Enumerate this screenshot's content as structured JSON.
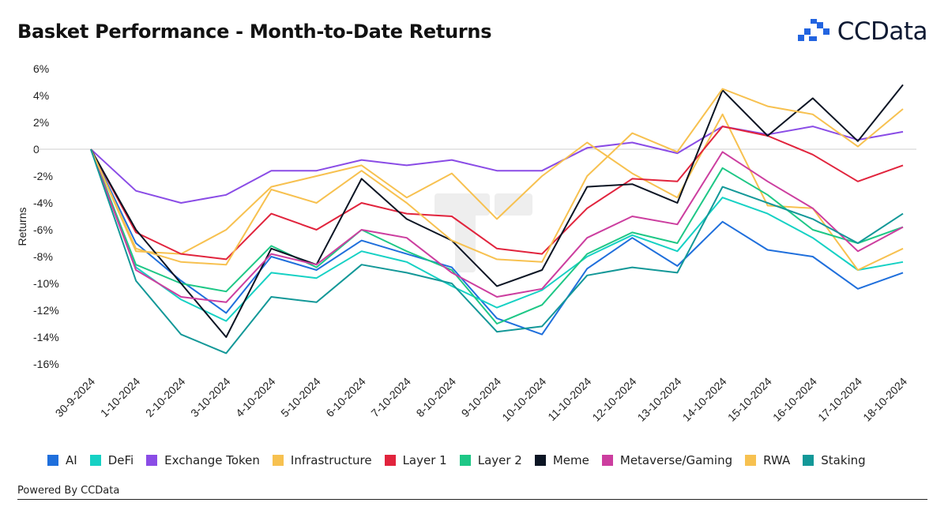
{
  "title": "Basket Performance - Month-to-Date Returns",
  "brand": {
    "name": "CCData",
    "color": "#2264e0",
    "icon": "ccdata-logo-icon"
  },
  "footer": "Powered By CCData",
  "chart_data": {
    "type": "line",
    "title": "Basket Performance - Month-to-Date Returns",
    "xlabel": "",
    "ylabel": "Returns",
    "ylim": [
      -16,
      6
    ],
    "yticks": [
      6,
      4,
      2,
      0,
      -2,
      -4,
      -6,
      -8,
      -10,
      -12,
      -14,
      -16
    ],
    "ytick_labels": [
      "6%",
      "4%",
      "2%",
      "0",
      "-2%",
      "-4%",
      "-6%",
      "-8%",
      "-10%",
      "-12%",
      "-14%",
      "-16%"
    ],
    "grid": false,
    "legend_position": "bottom",
    "categories": [
      "30-9-2024",
      "1-10-2024",
      "2-10-2024",
      "3-10-2024",
      "4-10-2024",
      "5-10-2024",
      "6-10-2024",
      "7-10-2024",
      "8-10-2024",
      "9-10-2024",
      "10-10-2024",
      "11-10-2024",
      "12-10-2024",
      "13-10-2024",
      "14-10-2024",
      "15-10-2024",
      "16-10-2024",
      "17-10-2024",
      "18-10-2024"
    ],
    "series": [
      {
        "name": "AI",
        "color": "#1f6fdc",
        "values": [
          0,
          -7.0,
          -9.8,
          -12.2,
          -8.0,
          -9.0,
          -6.8,
          -7.8,
          -8.8,
          -12.6,
          -13.8,
          -8.9,
          -6.6,
          -8.7,
          -5.4,
          -7.5,
          -8.0,
          -10.4,
          -9.2
        ]
      },
      {
        "name": "DeFi",
        "color": "#16d1c4",
        "values": [
          0,
          -8.8,
          -11.2,
          -12.8,
          -9.2,
          -9.6,
          -7.6,
          -8.4,
          -10.2,
          -11.8,
          -10.5,
          -8.0,
          -6.4,
          -7.6,
          -3.6,
          -4.8,
          -6.6,
          -9.0,
          -8.4
        ]
      },
      {
        "name": "Exchange Token",
        "color": "#8a4ce6",
        "values": [
          0,
          -3.1,
          -4.0,
          -3.4,
          -1.6,
          -1.6,
          -0.8,
          -1.2,
          -0.8,
          -1.6,
          -1.6,
          0.1,
          0.5,
          -0.3,
          1.7,
          1.1,
          1.7,
          0.7,
          1.3
        ]
      },
      {
        "name": "Infrastructure",
        "color": "#f7c150",
        "values": [
          0,
          -7.6,
          -7.8,
          -6.0,
          -2.8,
          -2.0,
          -1.2,
          -3.6,
          -1.8,
          -5.2,
          -2.0,
          0.5,
          -1.8,
          -3.6,
          2.6,
          -4.2,
          -4.4,
          -9.0,
          -7.4
        ]
      },
      {
        "name": "Layer 1",
        "color": "#e1243d",
        "values": [
          0,
          -6.2,
          -7.8,
          -8.2,
          -4.8,
          -6.0,
          -4.0,
          -4.8,
          -5.0,
          -7.4,
          -7.8,
          -4.4,
          -2.2,
          -2.4,
          1.7,
          1.0,
          -0.4,
          -2.4,
          -1.2
        ]
      },
      {
        "name": "Layer 2",
        "color": "#1ec786",
        "values": [
          0,
          -8.6,
          -10.0,
          -10.6,
          -7.2,
          -8.8,
          -6.0,
          -7.6,
          -9.0,
          -13.0,
          -11.6,
          -7.8,
          -6.2,
          -7.0,
          -1.4,
          -3.4,
          -6.0,
          -7.0,
          -5.8
        ]
      },
      {
        "name": "Meme",
        "color": "#0c1524",
        "values": [
          0,
          -6.0,
          -10.0,
          -14.0,
          -7.4,
          -8.6,
          -2.2,
          -5.2,
          -6.8,
          -10.2,
          -9.0,
          -2.8,
          -2.6,
          -4.0,
          4.4,
          1.0,
          3.8,
          0.6,
          4.8
        ]
      },
      {
        "name": "Metaverse/Gaming",
        "color": "#cc3e9f",
        "values": [
          0,
          -9.0,
          -11.0,
          -11.4,
          -7.8,
          -8.6,
          -6.0,
          -6.6,
          -9.2,
          -11.0,
          -10.4,
          -6.6,
          -5.0,
          -5.6,
          -0.2,
          -2.4,
          -4.4,
          -7.6,
          -5.8
        ]
      },
      {
        "name": "RWA",
        "color": "#f7c150",
        "values": [
          0,
          -7.4,
          -8.4,
          -8.6,
          -3.0,
          -4.0,
          -1.6,
          -4.0,
          -6.8,
          -8.2,
          -8.4,
          -2.0,
          1.2,
          -0.2,
          4.5,
          3.2,
          2.6,
          0.2,
          3.0
        ]
      },
      {
        "name": "Staking",
        "color": "#139898",
        "values": [
          0,
          -9.8,
          -13.8,
          -15.2,
          -11.0,
          -11.4,
          -8.6,
          -9.2,
          -10.0,
          -13.6,
          -13.2,
          -9.4,
          -8.8,
          -9.2,
          -2.8,
          -4.0,
          -5.2,
          -7.0,
          -4.8
        ]
      }
    ]
  }
}
